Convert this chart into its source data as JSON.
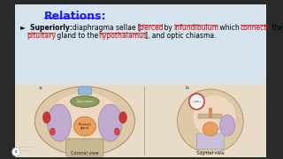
{
  "bg_color": "#d6e4f0",
  "title": "Relations:",
  "title_color": "#1a1aff",
  "bullet_line1": [
    [
      "►  Superiorly: ",
      "#000000",
      true,
      false
    ],
    [
      "diaphragma sellae [",
      "#000000",
      false,
      false
    ],
    [
      "pierced",
      "#cc0000",
      false,
      true
    ],
    [
      " by ",
      "#000000",
      false,
      false
    ],
    [
      "infundibulum",
      "#cc0000",
      false,
      true
    ],
    [
      " which ",
      "#000000",
      false,
      false
    ],
    [
      "connects",
      "#cc0000",
      false,
      true
    ],
    [
      " the",
      "#000000",
      false,
      false
    ]
  ],
  "bullet_line2": [
    [
      "pituitary",
      "#cc0000",
      false,
      true
    ],
    [
      " gland to the ",
      "#000000",
      false,
      false
    ],
    [
      "hypothalamus",
      "#cc0000",
      false,
      true
    ],
    [
      "], and optic chiasma.",
      "#000000",
      false,
      false
    ]
  ],
  "bottom_bg": "#e8dcc8",
  "coronal_label": "Coronal view",
  "sagittal_label": "Sagittal view",
  "outer_bg": "#2a2a2a"
}
